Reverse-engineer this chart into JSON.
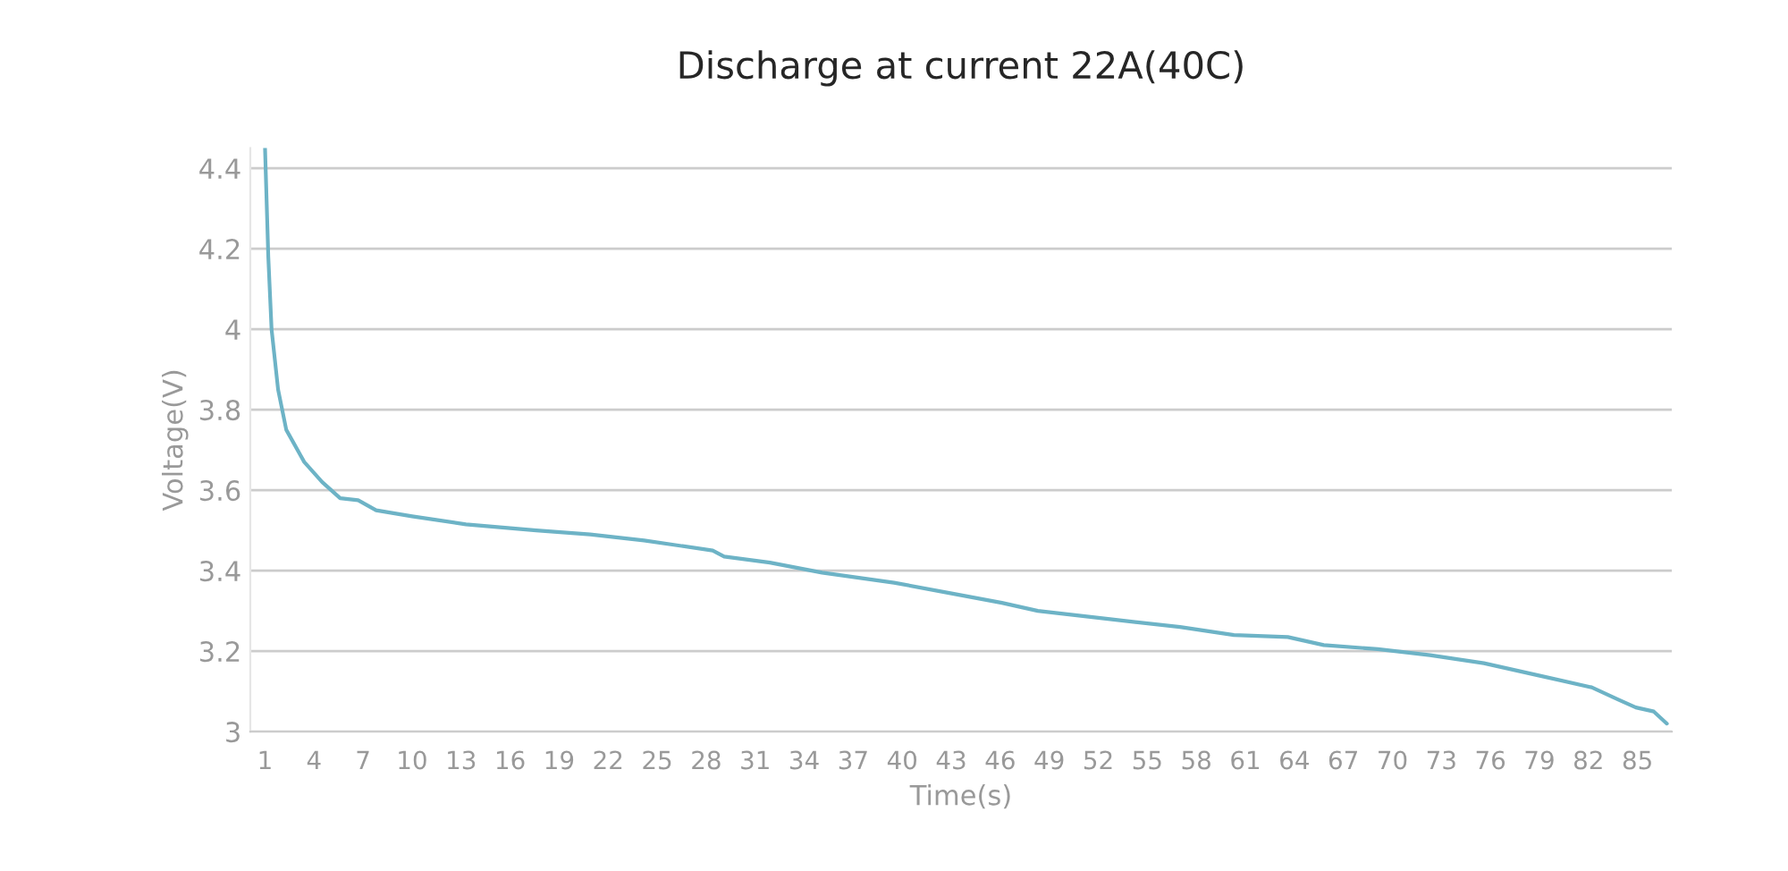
{
  "chart_data": {
    "type": "line",
    "title": "Discharge at current 22A(40C)",
    "xlabel": "Time(s)",
    "ylabel": "Voltage(V)",
    "x": [
      1,
      1.2,
      1.4,
      1.8,
      2.3,
      3.4,
      4.5,
      5.6,
      6.7,
      7.8,
      10,
      13.3,
      17.6,
      20.9,
      24.2,
      28.4,
      29.1,
      31.9,
      35.1,
      39.5,
      42.8,
      46.1,
      48.3,
      52.6,
      57,
      60.3,
      63.6,
      65.8,
      69.1,
      72.3,
      75.6,
      78.9,
      82.2,
      83.8,
      84.9,
      86,
      86.8
    ],
    "series": [
      {
        "color": "#6db3c6",
        "values": [
          4.45,
          4.18,
          4.0,
          3.85,
          3.75,
          3.67,
          3.62,
          3.58,
          3.575,
          3.55,
          3.535,
          3.515,
          3.5,
          3.49,
          3.475,
          3.45,
          3.435,
          3.42,
          3.395,
          3.37,
          3.345,
          3.32,
          3.3,
          3.28,
          3.26,
          3.24,
          3.235,
          3.215,
          3.205,
          3.19,
          3.17,
          3.14,
          3.11,
          3.08,
          3.06,
          3.05,
          3.02
        ]
      }
    ],
    "xlim": [
      0.1,
      87.1
    ],
    "xticks": [
      1,
      4,
      7,
      10,
      13,
      16,
      19,
      22,
      25,
      28,
      31,
      34,
      37,
      40,
      43,
      46,
      49,
      52,
      55,
      58,
      61,
      64,
      67,
      70,
      73,
      76,
      79,
      82,
      85
    ],
    "ylim": [
      3,
      4.45
    ],
    "yticks": [
      3,
      3.2,
      3.4,
      3.6,
      3.8,
      4,
      4.2,
      4.4
    ],
    "grid": "y",
    "marker": "none",
    "line_style": "solid"
  }
}
